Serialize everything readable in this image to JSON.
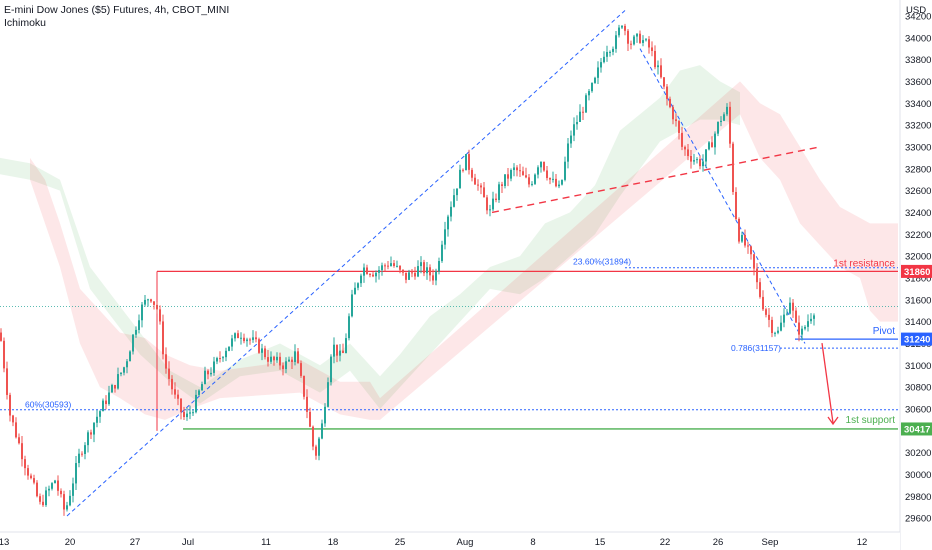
{
  "header": {
    "title": "E-mini Dow Jones ($5) Futures, 4h, CBOT_MINI",
    "indicator": "Ichimoku"
  },
  "colors": {
    "up": "#26a69a",
    "down": "#ef5350",
    "resistance": "#f23645",
    "support": "#4caf50",
    "pivot": "#2962ff",
    "fib": "#2962ff",
    "cloud_bull": "#4caf50",
    "cloud_bear": "#f23645"
  },
  "chart_data": {
    "type": "candlestick",
    "currency_label": "USD",
    "ylim": [
      29400,
      34300
    ],
    "y_ticks": [
      29600,
      29800,
      30000,
      30200,
      30400,
      30600,
      30800,
      31000,
      31200,
      31400,
      31600,
      31800,
      32000,
      32200,
      32400,
      32600,
      32800,
      33000,
      33200,
      33400,
      33600,
      33800,
      34000,
      34200
    ],
    "x_ticks": [
      "13",
      "20",
      "27",
      "Jul",
      "11",
      "18",
      "25",
      "Aug",
      "8",
      "15",
      "22",
      "26",
      "Sep",
      "12"
    ],
    "current_price": 31540,
    "price_path": [
      [
        0,
        31300
      ],
      [
        10,
        30550
      ],
      [
        25,
        30100
      ],
      [
        40,
        29720
      ],
      [
        55,
        29950
      ],
      [
        65,
        29650
      ],
      [
        80,
        30200
      ],
      [
        95,
        30500
      ],
      [
        110,
        30750
      ],
      [
        125,
        31000
      ],
      [
        140,
        31500
      ],
      [
        150,
        31650
      ],
      [
        158,
        31500
      ],
      [
        165,
        31000
      ],
      [
        175,
        30700
      ],
      [
        185,
        30500
      ],
      [
        195,
        30650
      ],
      [
        205,
        30900
      ],
      [
        215,
        31000
      ],
      [
        225,
        31150
      ],
      [
        240,
        31300
      ],
      [
        255,
        31200
      ],
      [
        270,
        31050
      ],
      [
        285,
        31000
      ],
      [
        295,
        31100
      ],
      [
        305,
        30700
      ],
      [
        315,
        30150
      ],
      [
        322,
        30450
      ],
      [
        332,
        31200
      ],
      [
        342,
        31050
      ],
      [
        352,
        31600
      ],
      [
        362,
        31900
      ],
      [
        375,
        31850
      ],
      [
        390,
        31950
      ],
      [
        405,
        31800
      ],
      [
        420,
        31900
      ],
      [
        435,
        31800
      ],
      [
        445,
        32300
      ],
      [
        455,
        32600
      ],
      [
        465,
        32900
      ],
      [
        475,
        32700
      ],
      [
        490,
        32400
      ],
      [
        500,
        32650
      ],
      [
        515,
        32800
      ],
      [
        530,
        32650
      ],
      [
        540,
        32900
      ],
      [
        550,
        32700
      ],
      [
        560,
        32600
      ],
      [
        570,
        33100
      ],
      [
        580,
        33300
      ],
      [
        595,
        33600
      ],
      [
        605,
        33900
      ],
      [
        615,
        33950
      ],
      [
        622,
        34150
      ],
      [
        630,
        33950
      ],
      [
        640,
        34000
      ],
      [
        650,
        33900
      ],
      [
        660,
        33650
      ],
      [
        668,
        33400
      ],
      [
        675,
        33250
      ],
      [
        682,
        33000
      ],
      [
        692,
        32900
      ],
      [
        702,
        32850
      ],
      [
        712,
        33050
      ],
      [
        720,
        33250
      ],
      [
        728,
        33350
      ],
      [
        732,
        32700
      ],
      [
        738,
        32200
      ],
      [
        745,
        32100
      ],
      [
        752,
        31950
      ],
      [
        758,
        31700
      ],
      [
        765,
        31500
      ],
      [
        772,
        31350
      ],
      [
        778,
        31300
      ],
      [
        784,
        31450
      ],
      [
        790,
        31600
      ],
      [
        796,
        31350
      ],
      [
        802,
        31300
      ],
      [
        810,
        31450
      ],
      [
        816,
        31540
      ]
    ],
    "cloud_bull": [
      [
        0,
        32900,
        32750
      ],
      [
        30,
        32850,
        32700
      ],
      [
        60,
        32700,
        32600
      ],
      [
        90,
        31900,
        31700
      ],
      [
        140,
        31300,
        31100
      ],
      [
        170,
        30950,
        30850
      ],
      [
        200,
        30800,
        30650
      ],
      [
        240,
        31050,
        30900
      ],
      [
        280,
        31200,
        30950
      ],
      [
        320,
        31000,
        30750
      ],
      [
        350,
        31200,
        30950
      ],
      [
        380,
        30900,
        30600
      ],
      [
        400,
        31100,
        30800
      ],
      [
        430,
        31450,
        31100
      ],
      [
        460,
        31650,
        31400
      ],
      [
        490,
        31900,
        31700
      ],
      [
        520,
        32000,
        31650
      ],
      [
        545,
        32300,
        31800
      ],
      [
        570,
        32400,
        32000
      ],
      [
        595,
        32650,
        32200
      ],
      [
        620,
        33150,
        32550
      ],
      [
        640,
        33300,
        32800
      ],
      [
        660,
        33450,
        33050
      ],
      [
        680,
        33700,
        33150
      ],
      [
        700,
        33750,
        33250
      ],
      [
        720,
        33600,
        33250
      ],
      [
        740,
        33500,
        33200
      ]
    ],
    "cloud_bear": [
      [
        30,
        32900,
        32700
      ],
      [
        45,
        32700,
        32300
      ],
      [
        60,
        32300,
        31900
      ],
      [
        80,
        31700,
        31200
      ],
      [
        100,
        31500,
        30800
      ],
      [
        120,
        31300,
        30700
      ],
      [
        145,
        31250,
        30550
      ],
      [
        165,
        31100,
        30500
      ],
      [
        190,
        31000,
        30600
      ],
      [
        220,
        30950,
        30700
      ],
      [
        300,
        31050,
        30750
      ],
      [
        340,
        30850,
        30550
      ],
      [
        370,
        30850,
        30500
      ],
      [
        380,
        30700,
        30500
      ],
      [
        740,
        33600,
        33300
      ],
      [
        760,
        33400,
        32900
      ],
      [
        780,
        33300,
        32700
      ],
      [
        800,
        33000,
        32300
      ],
      [
        820,
        32700,
        32100
      ],
      [
        840,
        32450,
        31900
      ],
      [
        860,
        32350,
        31800
      ],
      [
        870,
        32300,
        31500
      ],
      [
        880,
        32300,
        31400
      ],
      [
        898,
        32300,
        31400
      ]
    ],
    "levels": [
      {
        "name": "1st resistance",
        "value": 31860,
        "tag": "31860"
      },
      {
        "name": "Pivot",
        "value": 31240,
        "tag": "31240"
      },
      {
        "name": "1st support",
        "value": 30417,
        "tag": "30417"
      }
    ],
    "fib_labels": [
      {
        "text": "23.60%(31894)",
        "value": 31894
      },
      {
        "text": "0.786(31157)",
        "value": 31157
      },
      {
        "text": "60%(30593)",
        "value": 30593
      }
    ],
    "trendlines": [
      {
        "kind": "blue-up",
        "from": [
          67,
          29620
        ],
        "to": [
          625,
          34250
        ]
      },
      {
        "kind": "blue-down",
        "from": [
          640,
          33900
        ],
        "to": [
          805,
          31200
        ]
      },
      {
        "kind": "red-dashed",
        "from": [
          492,
          32400
        ],
        "to": [
          820,
          33000
        ]
      }
    ]
  }
}
